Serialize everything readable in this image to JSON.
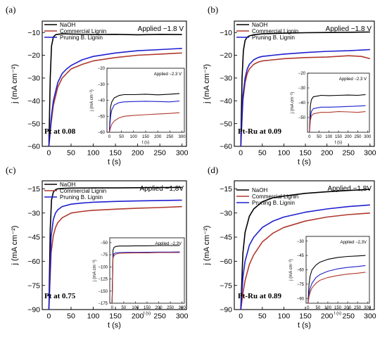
{
  "chart_data": [
    {
      "type": "line",
      "panel_label": "(a)",
      "xlabel": "t (s)",
      "ylabel": "j (mA cm⁻²)",
      "xlim": [
        -15,
        310
      ],
      "ylim": [
        -60,
        -5
      ],
      "xticks": [
        0,
        50,
        100,
        150,
        200,
        250,
        300
      ],
      "yticks": [
        -10,
        -20,
        -30,
        -40,
        -50,
        -60
      ],
      "annotation": "Applied −1.8 V",
      "corner_label": "Pt at 0.08",
      "legend": "top-left",
      "series": [
        {
          "name": "NaOH",
          "color": "#000000",
          "x": [
            0,
            3,
            6,
            10,
            15,
            20,
            30,
            50,
            100,
            150,
            200,
            250,
            300
          ],
          "y": [
            -60,
            -30,
            -16,
            -12,
            -11,
            -10.8,
            -10.6,
            -10.7,
            -10.9,
            -10.8,
            -11.0,
            -10.8,
            -10.9
          ]
        },
        {
          "name": "Commercial Lignin",
          "color": "#b03a2e",
          "x": [
            0,
            5,
            10,
            20,
            30,
            40,
            50,
            75,
            100,
            150,
            200,
            250,
            300
          ],
          "y": [
            -60,
            -50,
            -42,
            -34,
            -30,
            -28,
            -26,
            -24,
            -22.5,
            -21,
            -20,
            -19.5,
            -19
          ]
        },
        {
          "name": "Pruning B. Lignin",
          "color": "#1f1fd0",
          "x": [
            0,
            5,
            10,
            20,
            30,
            40,
            50,
            75,
            100,
            150,
            200,
            250,
            300
          ],
          "y": [
            -60,
            -48,
            -40,
            -32,
            -28,
            -26,
            -24.5,
            -22,
            -20.5,
            -19,
            -18,
            -17.5,
            -17
          ]
        }
      ],
      "inset": {
        "annotation": "Applied −2.3 V",
        "xlabel": "t (s)",
        "ylabel": "j (mA cm⁻²)",
        "xlim": [
          -10,
          310
        ],
        "ylim": [
          -60,
          -20
        ],
        "xticks": [
          0,
          50,
          100,
          150,
          200,
          250,
          300
        ],
        "yticks": [
          -20,
          -30,
          -40,
          -50,
          -60
        ],
        "series": [
          {
            "color": "#000000",
            "x": [
              0,
              5,
              10,
              20,
              40,
              60,
              100,
              150,
              200,
              250,
              290
            ],
            "y": [
              -60,
              -44,
              -41,
              -38.5,
              -37,
              -36.5,
              -36.5,
              -36.2,
              -36.6,
              -36.2,
              -35.8
            ]
          },
          {
            "color": "#1f1fd0",
            "x": [
              0,
              5,
              10,
              20,
              40,
              60,
              100,
              150,
              200,
              250,
              290
            ],
            "y": [
              -60,
              -50,
              -46,
              -43,
              -41.5,
              -41,
              -40.8,
              -40.6,
              -40.8,
              -41,
              -40.5
            ]
          },
          {
            "color": "#b03a2e",
            "x": [
              0,
              5,
              10,
              20,
              40,
              60,
              100,
              150,
              200,
              250,
              290
            ],
            "y": [
              -60,
              -57,
              -55,
              -53,
              -51,
              -50,
              -49.5,
              -49,
              -48.6,
              -48.2,
              -47.8
            ]
          }
        ]
      }
    },
    {
      "type": "line",
      "panel_label": "(b)",
      "xlabel": "t (s)",
      "ylabel": "j (mA cm⁻²)",
      "xlim": [
        -15,
        310
      ],
      "ylim": [
        -60,
        -5
      ],
      "xticks": [
        0,
        50,
        100,
        150,
        200,
        250,
        300
      ],
      "yticks": [
        -10,
        -20,
        -30,
        -40,
        -50,
        -60
      ],
      "annotation": "Applied −1.8 V",
      "corner_label": "Pt-Ru at 0.09",
      "legend": "top-left",
      "series": [
        {
          "name": "NaOH",
          "color": "#000000",
          "x": [
            0,
            3,
            6,
            10,
            15,
            20,
            30,
            50,
            100,
            150,
            200,
            250,
            300
          ],
          "y": [
            -60,
            -30,
            -18,
            -13.5,
            -12,
            -11.5,
            -11,
            -10.6,
            -10.3,
            -10.1,
            -10,
            -9.9,
            -9.8
          ]
        },
        {
          "name": "Commercial Lignin",
          "color": "#b03a2e",
          "x": [
            0,
            5,
            10,
            15,
            20,
            30,
            40,
            50,
            75,
            100,
            150,
            200,
            250,
            280,
            300
          ],
          "y": [
            -60,
            -40,
            -32,
            -28,
            -26,
            -24,
            -23,
            -22.5,
            -22,
            -21.5,
            -21,
            -20.8,
            -20.2,
            -20.5,
            -21.5
          ]
        },
        {
          "name": "Pruning B. Lignin",
          "color": "#1f1fd0",
          "x": [
            0,
            5,
            10,
            15,
            20,
            30,
            40,
            50,
            75,
            100,
            150,
            200,
            250,
            300
          ],
          "y": [
            -60,
            -38,
            -30,
            -26,
            -24,
            -22,
            -21,
            -20.5,
            -20,
            -19.5,
            -18.8,
            -18.3,
            -18,
            -17.5
          ]
        }
      ],
      "inset": {
        "annotation": "Applied −2.3 V",
        "xlabel": "t (s)",
        "ylabel": "j (mA cm⁻²)",
        "xlim": [
          -10,
          310
        ],
        "ylim": [
          -60,
          -20
        ],
        "xticks": [
          0,
          50,
          100,
          150,
          200,
          250,
          300
        ],
        "yticks": [
          -20,
          -30,
          -40,
          -50
        ],
        "series": [
          {
            "color": "#000000",
            "x": [
              0,
              5,
              10,
              20,
              40,
              60,
              100,
              150,
              200,
              250,
              290
            ],
            "y": [
              -60,
              -42,
              -38,
              -36,
              -35.5,
              -35,
              -35.2,
              -35,
              -34.8,
              -35,
              -34.5
            ]
          },
          {
            "color": "#1f1fd0",
            "x": [
              0,
              5,
              10,
              20,
              40,
              60,
              100,
              150,
              200,
              250,
              290
            ],
            "y": [
              -60,
              -50,
              -46,
              -44,
              -43.5,
              -43,
              -43,
              -42.8,
              -42.5,
              -42.3,
              -42
            ]
          },
          {
            "color": "#b03a2e",
            "x": [
              0,
              5,
              10,
              20,
              40,
              60,
              100,
              150,
              200,
              250,
              290
            ],
            "y": [
              -60,
              -52,
              -49,
              -47.5,
              -47,
              -46.5,
              -46.5,
              -46,
              -46.2,
              -46.5,
              -46
            ]
          }
        ]
      }
    },
    {
      "type": "line",
      "panel_label": "(c)",
      "xlabel": "t (s)",
      "ylabel": "j (mA cm⁻²)",
      "xlim": [
        -15,
        310
      ],
      "ylim": [
        -90,
        -10
      ],
      "xticks": [
        0,
        50,
        100,
        150,
        200,
        250,
        300
      ],
      "yticks": [
        -15,
        -30,
        -45,
        -60,
        -75,
        -90
      ],
      "annotation": "Applied −1,8V",
      "corner_label": "Pt at 0.75",
      "legend": "top-left",
      "series": [
        {
          "name": "NaOH",
          "color": "#000000",
          "x": [
            0,
            3,
            6,
            10,
            15,
            20,
            30,
            50,
            100,
            150,
            200,
            250,
            300
          ],
          "y": [
            -90,
            -40,
            -22,
            -17,
            -15.5,
            -15,
            -14.7,
            -14.5,
            -14.4,
            -14.4,
            -14.3,
            -14.2,
            -14.1
          ]
        },
        {
          "name": "Commercial Lignin",
          "color": "#b03a2e",
          "x": [
            0,
            5,
            10,
            15,
            20,
            30,
            50,
            75,
            100,
            150,
            200,
            250,
            300
          ],
          "y": [
            -90,
            -55,
            -44,
            -39,
            -36,
            -33,
            -30,
            -29,
            -28.3,
            -27.6,
            -27,
            -26.6,
            -26
          ]
        },
        {
          "name": "Pruning B. Lignin",
          "color": "#1f1fd0",
          "x": [
            0,
            5,
            10,
            15,
            20,
            30,
            50,
            75,
            100,
            150,
            200,
            250,
            300
          ],
          "y": [
            -90,
            -45,
            -34,
            -30,
            -28,
            -26,
            -24.5,
            -23.8,
            -23.3,
            -22.8,
            -22.5,
            -22.3,
            -22
          ]
        }
      ],
      "inset": {
        "annotation": "Applied −2,3V",
        "xlabel": "t (s)",
        "ylabel": "j (mA cm⁻²)",
        "xlim": [
          -10,
          310
        ],
        "ylim": [
          -175,
          -40
        ],
        "xticks": [
          0,
          50,
          100,
          150,
          200,
          250,
          300
        ],
        "yticks": [
          -50,
          -75,
          -100,
          -125,
          -150,
          -175
        ],
        "series": [
          {
            "color": "#000000",
            "x": [
              0,
              4,
              8,
              15,
              30,
              60,
              100,
              150,
              200,
              250,
              290
            ],
            "y": [
              -175,
              -65,
              -60,
              -58,
              -57,
              -57,
              -56.5,
              -56.5,
              -56,
              -56,
              -56
            ]
          },
          {
            "color": "#1f1fd0",
            "x": [
              0,
              4,
              8,
              15,
              30,
              60,
              100,
              150,
              200,
              250,
              290
            ],
            "y": [
              -175,
              -78,
              -73,
              -71,
              -70.5,
              -70,
              -70,
              -69.8,
              -69.5,
              -69.5,
              -69
            ]
          },
          {
            "color": "#b03a2e",
            "x": [
              0,
              4,
              8,
              15,
              30,
              60,
              100,
              150,
              200,
              250,
              290
            ],
            "y": [
              -175,
              -82,
              -77,
              -74,
              -72,
              -71.5,
              -71,
              -71,
              -70.5,
              -70.5,
              -70.5
            ]
          }
        ]
      }
    },
    {
      "type": "line",
      "panel_label": "(d)",
      "xlabel": "t (s)",
      "ylabel": "j (mA cm⁻²)",
      "xlim": [
        -15,
        310
      ],
      "ylim": [
        -90,
        -10
      ],
      "xticks": [
        0,
        50,
        100,
        150,
        200,
        250,
        300
      ],
      "yticks": [
        -15,
        -30,
        -45,
        -60,
        -75,
        -90
      ],
      "annotation": "Applied −1,8V",
      "corner_label": "Pt-Ru at 0.89",
      "legend": "top-left",
      "series": [
        {
          "name": "NaOH",
          "color": "#000000",
          "x": [
            0,
            5,
            10,
            20,
            30,
            50,
            75,
            100,
            150,
            200,
            250,
            300
          ],
          "y": [
            -90,
            -55,
            -42,
            -32,
            -27.5,
            -23,
            -20.5,
            -19.5,
            -17.8,
            -16.8,
            -16,
            -15.3
          ]
        },
        {
          "name": "Commercial Lignin",
          "color": "#b03a2e",
          "x": [
            0,
            5,
            10,
            20,
            30,
            50,
            75,
            100,
            150,
            200,
            250,
            300
          ],
          "y": [
            -90,
            -80,
            -72,
            -62,
            -56,
            -48,
            -42.5,
            -39,
            -35,
            -32.5,
            -31,
            -30
          ]
        },
        {
          "name": "Pruning B. Lignin",
          "color": "#1f1fd0",
          "x": [
            0,
            5,
            10,
            20,
            30,
            50,
            75,
            100,
            150,
            200,
            250,
            300
          ],
          "y": [
            -90,
            -70,
            -60,
            -50,
            -45,
            -39,
            -35,
            -32.5,
            -29.5,
            -27.5,
            -26,
            -25
          ]
        }
      ],
      "inset": {
        "annotation": "Applied −2,3V",
        "xlabel": "t (s)",
        "ylabel": "j (mA cm⁻²)",
        "xlim": [
          -10,
          310
        ],
        "ylim": [
          -95,
          -25
        ],
        "xticks": [
          0,
          50,
          100,
          150,
          200,
          250,
          300
        ],
        "yticks": [
          -30,
          -45,
          -60,
          -75,
          -90
        ],
        "series": [
          {
            "color": "#000000",
            "x": [
              0,
              5,
              10,
              20,
              40,
              60,
              100,
              150,
              200,
              250,
              290
            ],
            "y": [
              -95,
              -75,
              -67,
              -60,
              -55,
              -52,
              -49,
              -47,
              -46,
              -45.5,
              -45
            ]
          },
          {
            "color": "#1f1fd0",
            "x": [
              0,
              5,
              10,
              20,
              40,
              60,
              100,
              150,
              200,
              250,
              290
            ],
            "y": [
              -95,
              -85,
              -80,
              -74,
              -68,
              -65,
              -61.5,
              -59,
              -57.5,
              -56.5,
              -55.5
            ]
          },
          {
            "color": "#b03a2e",
            "x": [
              0,
              5,
              10,
              20,
              40,
              60,
              100,
              150,
              200,
              250,
              290
            ],
            "y": [
              -95,
              -88,
              -84,
              -79,
              -74,
              -71,
              -68,
              -66,
              -64.5,
              -63.5,
              -62.5
            ]
          }
        ]
      }
    }
  ]
}
